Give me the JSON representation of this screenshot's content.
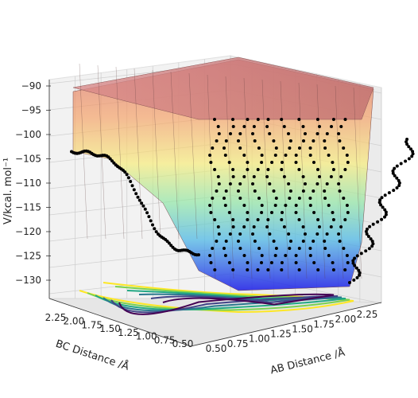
{
  "chart_data": {
    "type": "surface3d",
    "title": "",
    "xlabel": "AB Distance /Å",
    "ylabel": "BC Distance /Å",
    "zlabel": "V/kcal. mol$^{-1}$",
    "zlabel_display": "V/kcal. mol⁻¹",
    "x_ticks": [
      "0.50",
      "0.75",
      "1.00",
      "1.25",
      "1.50",
      "1.75",
      "2.00",
      "2.25"
    ],
    "y_ticks": [
      "0.50",
      "0.75",
      "1.00",
      "1.25",
      "1.50",
      "1.75",
      "2.00",
      "2.25"
    ],
    "z_ticks": [
      "−90",
      "−95",
      "−100",
      "−105",
      "−110",
      "−115",
      "−120",
      "−125",
      "−130"
    ],
    "xlim": [
      0.5,
      2.4
    ],
    "ylim": [
      0.5,
      2.4
    ],
    "zlim": [
      -134,
      -89
    ],
    "surface": {
      "colormap": "jet",
      "z_clip": -90,
      "description": "potential energy surface with minimum well along AB ≈ 1.0 Å and BC ≈ 1.0 Å"
    },
    "trajectory_points": "black dots oscillating along the reaction path",
    "contours": {
      "colormap": "viridis",
      "levels": 6
    },
    "grid": true
  },
  "colors": {
    "pane_bg": "#f2f2f2",
    "grid": "#d0d0d0",
    "trajectory": "#000000"
  }
}
